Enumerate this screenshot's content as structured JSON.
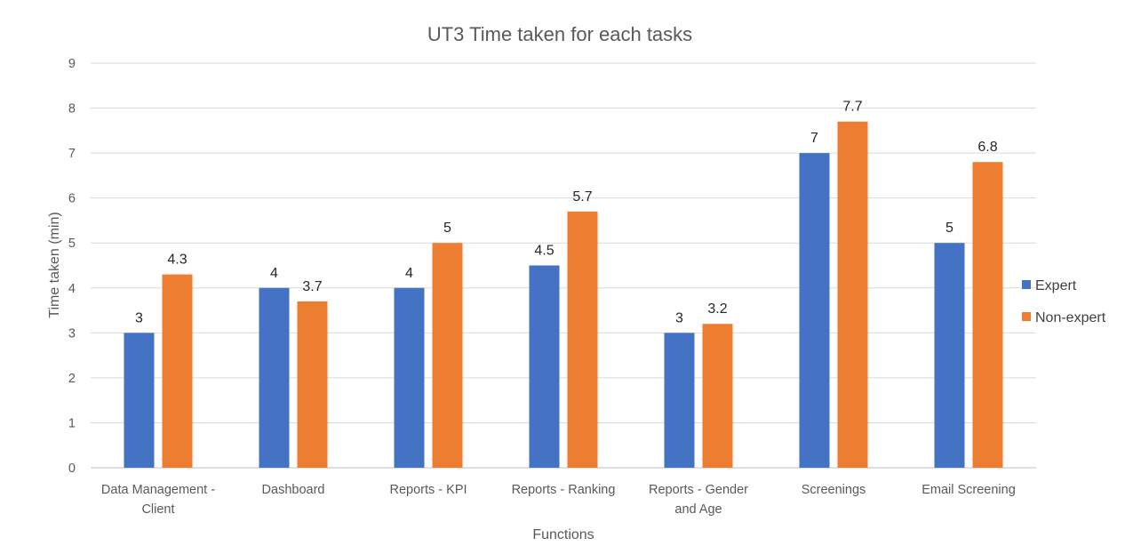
{
  "chart_data": {
    "type": "bar",
    "title": "UT3 Time taken for each tasks",
    "xlabel": "Functions",
    "ylabel": "Time taken (min)",
    "ylim": [
      0,
      9
    ],
    "yticks": [
      "0",
      "1",
      "2",
      "3",
      "4",
      "5",
      "6",
      "7",
      "8",
      "9"
    ],
    "grid": true,
    "legend_position": "right",
    "categories": [
      [
        "Data Management -",
        "Client"
      ],
      [
        "Dashboard"
      ],
      [
        "Reports - KPI"
      ],
      [
        "Reports - Ranking"
      ],
      [
        "Reports - Gender",
        "and Age"
      ],
      [
        "Screenings"
      ],
      [
        "Email Screening"
      ]
    ],
    "series": [
      {
        "name": "Expert",
        "color": "#4472C4",
        "values": [
          3,
          4,
          4,
          4.5,
          3,
          7,
          5
        ],
        "labels": [
          "3",
          "4",
          "4",
          "4.5",
          "3",
          "7",
          "5"
        ]
      },
      {
        "name": "Non-expert",
        "color": "#ED7D31",
        "values": [
          4.3,
          3.7,
          5,
          5.7,
          3.2,
          7.7,
          6.8
        ],
        "labels": [
          "4.3",
          "3.7",
          "5",
          "5.7",
          "3.2",
          "7.7",
          "6.8"
        ]
      }
    ]
  }
}
